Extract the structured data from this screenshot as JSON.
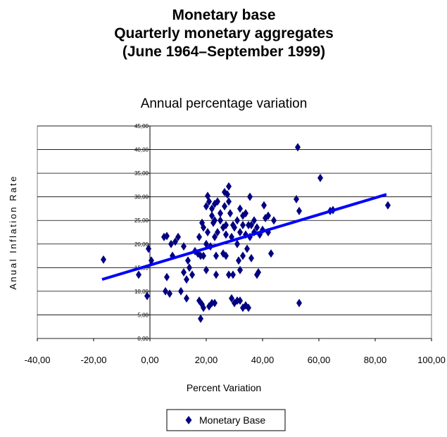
{
  "chart_data": {
    "type": "scatter",
    "title": [
      "Monetary base",
      "Quarterly monetary aggregates",
      "(June 1964–September 1999)"
    ],
    "subtitle": "Annual percentage variation",
    "x_label": "Percent Variation",
    "y_label": "Anual Inflation Rate",
    "xlim": [
      -40,
      100
    ],
    "xticks": [
      {
        "value": -40,
        "label": "-40,00"
      },
      {
        "value": -20,
        "label": "-20,00"
      },
      {
        "value": 0,
        "label": "0,00"
      },
      {
        "value": 20,
        "label": "20,00"
      },
      {
        "value": 40,
        "label": "40,00"
      },
      {
        "value": 60,
        "label": "60,00"
      },
      {
        "value": 80,
        "label": "80,00"
      },
      {
        "value": 100,
        "label": "100,00"
      }
    ],
    "ylim": [
      0,
      45
    ],
    "yticks": [
      {
        "value": 0,
        "label": "0,00"
      },
      {
        "value": 5,
        "label": "5,00"
      },
      {
        "value": 10,
        "label": "10,00"
      },
      {
        "value": 15,
        "label": "15,00"
      },
      {
        "value": 20,
        "label": "20,00"
      },
      {
        "value": 25,
        "label": "25,00"
      },
      {
        "value": 30,
        "label": "30,00"
      },
      {
        "value": 35,
        "label": "35,00"
      },
      {
        "value": 40,
        "label": "40,00"
      },
      {
        "value": 45,
        "label": "45,00"
      }
    ],
    "grid": true,
    "legend": "bottom",
    "series": [
      {
        "name": "Monetary Base",
        "color": "#000080",
        "x": [
          -16.5,
          -4,
          -1,
          -0.5,
          0.5,
          5,
          5.5,
          6,
          6,
          7,
          7.5,
          8,
          9,
          10,
          11,
          12,
          12,
          13,
          13,
          13.5,
          14,
          15,
          16,
          17,
          17.5,
          17.5,
          18,
          18,
          18.5,
          18.5,
          19,
          19,
          19,
          20,
          20,
          20,
          20.5,
          20.5,
          21,
          21,
          21.5,
          22,
          22,
          22,
          22.5,
          23,
          23,
          23,
          23,
          23.5,
          23.5,
          24,
          24,
          25,
          25,
          26,
          26,
          26.5,
          26.5,
          27,
          27,
          27,
          27.5,
          28,
          28,
          28,
          28.5,
          29,
          29,
          29.5,
          29.5,
          30,
          30,
          31,
          31,
          31,
          31.5,
          32,
          32,
          32,
          32,
          33,
          33,
          33,
          33,
          34,
          34,
          34,
          34.5,
          35,
          35,
          35.5,
          35.5,
          36,
          36,
          37,
          37,
          38,
          38,
          38.5,
          39,
          40,
          40.5,
          41,
          42,
          42,
          43,
          44,
          52,
          52.5,
          53,
          53,
          60.5,
          64,
          65,
          84.5
        ],
        "values": [
          16.7,
          13.5,
          9,
          19,
          16.5,
          21.5,
          10,
          21.7,
          13,
          9.5,
          20,
          17.5,
          20.5,
          21.5,
          10,
          19.5,
          14,
          12.5,
          8.5,
          16.5,
          15,
          13.5,
          18.5,
          18,
          21.5,
          8,
          4.2,
          17.5,
          24.5,
          7.2,
          23.5,
          17.5,
          6.5,
          28,
          20,
          14.5,
          30.2,
          22.5,
          29,
          6.8,
          19.5,
          26,
          27.5,
          7.5,
          24.5,
          25,
          21.5,
          28.5,
          7.5,
          17.5,
          13.5,
          29,
          22.5,
          26.5,
          25,
          23.5,
          18,
          31,
          28,
          24,
          22,
          17.5,
          30.5,
          32.2,
          29,
          13.5,
          26.5,
          21.5,
          8.5,
          24,
          13.5,
          7.5,
          23.5,
          25,
          8,
          20,
          16.5,
          27.5,
          22.5,
          14.5,
          8,
          26,
          24,
          17.5,
          6.5,
          22,
          26.5,
          7,
          19,
          24,
          6.5,
          30,
          21.5,
          17,
          24,
          25,
          22.5,
          23.5,
          13.5,
          14,
          22,
          23,
          28.2,
          25.5,
          26,
          22.5,
          18,
          25,
          29.5,
          40.5,
          7.5,
          27,
          34,
          27,
          27.2,
          28.2
        ]
      }
    ],
    "trendline": {
      "x": [
        -17,
        84
      ],
      "y": [
        12.5,
        30.5
      ],
      "color": "#0000ff"
    }
  }
}
